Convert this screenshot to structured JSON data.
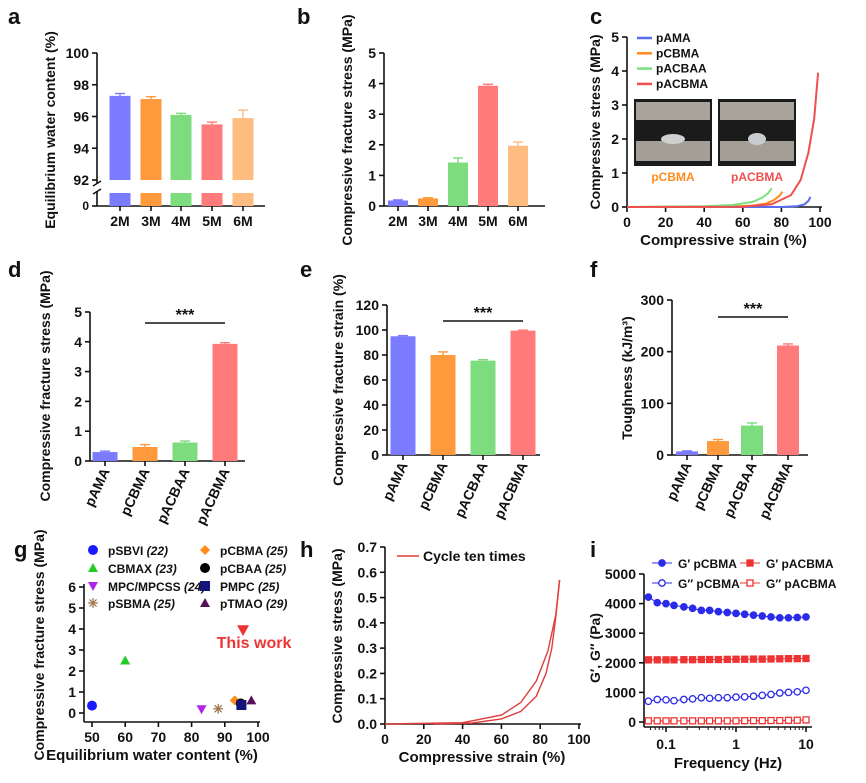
{
  "chart_data": [
    {
      "id": "a",
      "label": "a",
      "type": "bar",
      "title": "",
      "xlabel": "",
      "ylabel": "Equilibrium water content (%)",
      "categories": [
        "2M",
        "3M",
        "4M",
        "5M",
        "6M"
      ],
      "values": [
        97.3,
        97.1,
        96.1,
        95.5,
        95.9
      ],
      "errors": [
        0.15,
        0.15,
        0.1,
        0.15,
        0.5
      ],
      "colors": [
        "#7b7bff",
        "#ff9a3c",
        "#7ddc7d",
        "#ff7b7b",
        "#ffbc80"
      ],
      "ylim": [
        92,
        100
      ],
      "yticks": [
        "92",
        "94",
        "96",
        "98",
        "100"
      ],
      "axis_break": true,
      "below_break_tick": "0"
    },
    {
      "id": "b",
      "label": "b",
      "type": "bar",
      "title": "",
      "xlabel": "",
      "ylabel": "Compressive fracture stress (MPa)",
      "categories": [
        "2M",
        "3M",
        "4M",
        "5M",
        "6M"
      ],
      "values": [
        0.18,
        0.25,
        1.42,
        3.93,
        1.97
      ],
      "errors": [
        0.02,
        0.02,
        0.15,
        0.05,
        0.12
      ],
      "colors": [
        "#7b7bff",
        "#ff9a3c",
        "#7ddc7d",
        "#ff7b7b",
        "#ffbc80"
      ],
      "ylim": [
        0,
        5
      ],
      "yticks": [
        "0",
        "1",
        "2",
        "3",
        "4",
        "5"
      ]
    },
    {
      "id": "c",
      "label": "c",
      "type": "line",
      "title": "",
      "xlabel": "Compressive strain (%)",
      "ylabel": "Compressive stress (MPa)",
      "xlim": [
        0,
        100
      ],
      "ylim": [
        0,
        5
      ],
      "xticks": [
        "0",
        "20",
        "40",
        "60",
        "80",
        "100"
      ],
      "yticks": [
        "0",
        "1",
        "2",
        "3",
        "4",
        "5"
      ],
      "legend_placement": "top-left",
      "series": [
        {
          "name": "pAMA",
          "color": "#5a6cf0",
          "points": [
            [
              0,
              0
            ],
            [
              80,
              0
            ],
            [
              88,
              0.02
            ],
            [
              92,
              0.08
            ],
            [
              94,
              0.18
            ],
            [
              95,
              0.3
            ]
          ]
        },
        {
          "name": "pCBMA",
          "color": "#ff8c1a",
          "points": [
            [
              0,
              0
            ],
            [
              50,
              0.01
            ],
            [
              65,
              0.04
            ],
            [
              72,
              0.1
            ],
            [
              76,
              0.2
            ],
            [
              79,
              0.33
            ],
            [
              80.5,
              0.45
            ]
          ]
        },
        {
          "name": "pACBAA",
          "color": "#7be07b",
          "points": [
            [
              0,
              0
            ],
            [
              40,
              0.02
            ],
            [
              55,
              0.06
            ],
            [
              65,
              0.15
            ],
            [
              70,
              0.27
            ],
            [
              73,
              0.4
            ],
            [
              75,
              0.55
            ]
          ]
        },
        {
          "name": "pACBMA",
          "color": "#ef4f4f",
          "points": [
            [
              0,
              0
            ],
            [
              60,
              0.01
            ],
            [
              75,
              0.08
            ],
            [
              85,
              0.35
            ],
            [
              90,
              0.8
            ],
            [
              94,
              1.6
            ],
            [
              97,
              2.6
            ],
            [
              99,
              3.95
            ]
          ]
        }
      ],
      "inset_photos": [
        {
          "caption": "pCBMA",
          "color": "#ff8c1a"
        },
        {
          "caption": "pACBMA",
          "color": "#ef4f4f"
        }
      ]
    },
    {
      "id": "d",
      "label": "d",
      "type": "bar",
      "title": "",
      "xlabel": "",
      "ylabel": "Compressive fracture stress (MPa)",
      "categories": [
        "pAMA",
        "pCBMA",
        "pACBAA",
        "pACBMA"
      ],
      "values": [
        0.3,
        0.47,
        0.62,
        3.93
      ],
      "errors": [
        0.03,
        0.08,
        0.05,
        0.04
      ],
      "colors": [
        "#7b7bff",
        "#ff9a3c",
        "#7ddc7d",
        "#ff7b7b"
      ],
      "ylim": [
        0,
        5
      ],
      "yticks": [
        "0",
        "1",
        "2",
        "3",
        "4",
        "5"
      ],
      "significance": {
        "from": "pCBMA",
        "to": "pACBMA",
        "text": "***"
      }
    },
    {
      "id": "e",
      "label": "e",
      "type": "bar",
      "title": "",
      "xlabel": "",
      "ylabel": "Compressive fracture strain (%)",
      "categories": [
        "pAMA",
        "pCBMA",
        "pACBAA",
        "pACBMA"
      ],
      "values": [
        95,
        80,
        75.5,
        99.5
      ],
      "errors": [
        0.5,
        2.5,
        0.8,
        0.4
      ],
      "colors": [
        "#7b7bff",
        "#ff9a3c",
        "#7ddc7d",
        "#ff7b7b"
      ],
      "ylim": [
        0,
        120
      ],
      "yticks": [
        "0",
        "20",
        "40",
        "60",
        "80",
        "100",
        "120"
      ],
      "significance": {
        "from": "pCBMA",
        "to": "pACBMA",
        "text": "***"
      }
    },
    {
      "id": "f",
      "label": "f",
      "type": "bar",
      "title": "",
      "xlabel": "",
      "ylabel": "Toughness (kJ/m³)",
      "categories": [
        "pAMA",
        "pCBMA",
        "pACBAA",
        "pACBMA"
      ],
      "values": [
        7,
        27,
        57,
        212
      ],
      "errors": [
        1,
        3,
        5,
        3
      ],
      "colors": [
        "#7b7bff",
        "#ff9a3c",
        "#7ddc7d",
        "#ff7b7b"
      ],
      "ylim": [
        0,
        300
      ],
      "yticks": [
        "0",
        "100",
        "200",
        "300"
      ],
      "significance": {
        "from": "pCBMA",
        "to": "pACBMA",
        "text": "***"
      }
    },
    {
      "id": "g",
      "label": "g",
      "type": "scatter",
      "title": "",
      "xlabel": "Equilibrium water content (%)",
      "ylabel": "Compressive fracture stress (MPa)",
      "xlim": [
        50,
        100
      ],
      "ylim": [
        0,
        6
      ],
      "xticks": [
        "50",
        "60",
        "70",
        "80",
        "90",
        "100"
      ],
      "yticks": [
        "0",
        "1",
        "2",
        "3",
        "4",
        "5",
        "6"
      ],
      "legend_placement": "top",
      "series": [
        {
          "name": "pSBVI",
          "ref": "(22)",
          "shape": "circle",
          "color": "#1a1aff",
          "x": 50,
          "y": 0.35
        },
        {
          "name": "CBMAX",
          "ref": "(23)",
          "shape": "triangle",
          "color": "#22cc22",
          "x": 60,
          "y": 2.5
        },
        {
          "name": "MPC/MPCSS",
          "ref": "(24)",
          "shape": "triangle-down",
          "color": "#b026e8",
          "x": 83,
          "y": 0.18
        },
        {
          "name": "pSBMA",
          "ref": "(25)",
          "shape": "asterisk",
          "color": "#a07850",
          "x": 88,
          "y": 0.2
        },
        {
          "name": "pCBMA",
          "ref": "(25)",
          "shape": "diamond",
          "color": "#ff8c1a",
          "x": 93,
          "y": 0.6
        },
        {
          "name": "pCBAA",
          "ref": "(25)",
          "shape": "circle",
          "color": "#000000",
          "x": 94.8,
          "y": 0.45
        },
        {
          "name": "PMPC",
          "ref": "(25)",
          "shape": "square",
          "color": "#14147a",
          "x": 95,
          "y": 0.38
        },
        {
          "name": "pTMAO",
          "ref": "(29)",
          "shape": "triangle",
          "color": "#5a0f5a",
          "x": 98,
          "y": 0.6
        }
      ],
      "highlight": {
        "name": "This work",
        "shape": "triangle-down",
        "color": "#ee3333",
        "x": 95.5,
        "y": 3.95
      }
    },
    {
      "id": "h",
      "label": "h",
      "type": "line",
      "title": "",
      "xlabel": "Compressive strain (%)",
      "ylabel": "Compressive stress (MPa)",
      "xlim": [
        0,
        100
      ],
      "ylim": [
        0,
        0.7
      ],
      "xticks": [
        "0",
        "20",
        "40",
        "60",
        "80",
        "100"
      ],
      "yticks": [
        "0.0",
        "0.1",
        "0.2",
        "0.3",
        "0.4",
        "0.5",
        "0.6",
        "0.7"
      ],
      "legend_placement": "top-right",
      "series": [
        {
          "name": "Cycle ten times",
          "color": "#e03c3c",
          "loading": [
            [
              0,
              0
            ],
            [
              40,
              0.005
            ],
            [
              60,
              0.035
            ],
            [
              70,
              0.085
            ],
            [
              78,
              0.17
            ],
            [
              84,
              0.29
            ],
            [
              88,
              0.43
            ],
            [
              90,
              0.57
            ]
          ],
          "unloading": [
            [
              90,
              0.57
            ],
            [
              88,
              0.42
            ],
            [
              86,
              0.3
            ],
            [
              83,
              0.2
            ],
            [
              78,
              0.11
            ],
            [
              70,
              0.05
            ],
            [
              60,
              0.02
            ],
            [
              45,
              0.004
            ],
            [
              25,
              0
            ]
          ]
        }
      ]
    },
    {
      "id": "i",
      "label": "i",
      "type": "line",
      "title": "",
      "xlabel": "Frequency (Hz)",
      "ylabel": "G′, G″ (Pa)",
      "xscale": "log",
      "xlim": [
        0.05,
        10
      ],
      "ylim": [
        0,
        5000
      ],
      "xticks": [
        "0.1",
        "1",
        "10"
      ],
      "yticks": [
        "0",
        "1000",
        "2000",
        "3000",
        "4000",
        "5000"
      ],
      "legend_placement": "top",
      "x": [
        0.056,
        0.075,
        0.1,
        0.13,
        0.18,
        0.24,
        0.32,
        0.42,
        0.56,
        0.75,
        1,
        1.33,
        1.78,
        2.37,
        3.16,
        4.22,
        5.62,
        7.5,
        10
      ],
      "series": [
        {
          "name": "G′ pCBMA",
          "color": "#2b2bea",
          "marker": "circle",
          "filled": true,
          "values": [
            4220,
            4030,
            4000,
            3940,
            3890,
            3840,
            3770,
            3770,
            3730,
            3700,
            3670,
            3640,
            3610,
            3580,
            3550,
            3520,
            3520,
            3530,
            3550
          ]
        },
        {
          "name": "G′ pACBMA",
          "color": "#ee3333",
          "marker": "square",
          "filled": true,
          "values": [
            2100,
            2100,
            2100,
            2100,
            2105,
            2105,
            2110,
            2110,
            2110,
            2115,
            2120,
            2120,
            2125,
            2125,
            2130,
            2135,
            2140,
            2140,
            2145
          ]
        },
        {
          "name": "G″ pCBMA",
          "color": "#2b2bea",
          "marker": "circle",
          "filled": false,
          "values": [
            700,
            760,
            750,
            720,
            760,
            780,
            820,
            800,
            820,
            820,
            840,
            850,
            870,
            900,
            930,
            980,
            1000,
            1020,
            1070
          ]
        },
        {
          "name": "G″ pACBMA",
          "color": "#ee3333",
          "marker": "square",
          "filled": false,
          "values": [
            40,
            40,
            40,
            40,
            40,
            40,
            40,
            40,
            40,
            40,
            40,
            45,
            45,
            45,
            50,
            50,
            55,
            60,
            70
          ]
        }
      ]
    }
  ]
}
